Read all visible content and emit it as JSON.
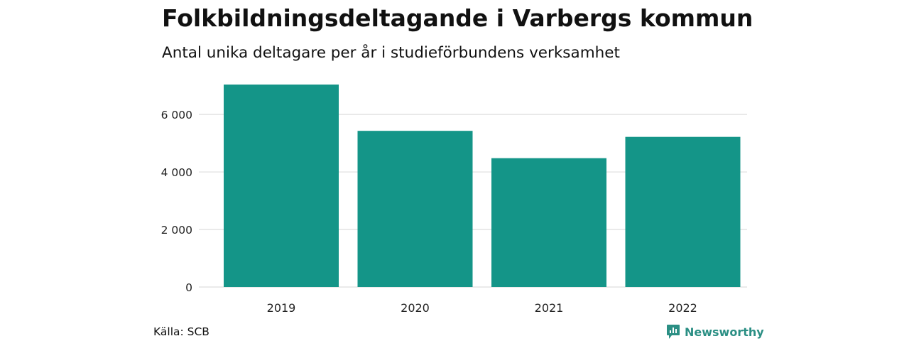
{
  "chart_data": {
    "type": "bar",
    "title": "Folkbildningsdeltagande i Varbergs kommun",
    "subtitle": "Antal unika deltagare per år i studieförbundens verksamhet",
    "categories": [
      "2019",
      "2020",
      "2021",
      "2022"
    ],
    "values": [
      7040,
      5430,
      4480,
      5220
    ],
    "ylim": [
      0,
      7040
    ],
    "yticks": [
      0,
      2000,
      4000,
      6000
    ],
    "ytick_labels": [
      "0",
      "2 000",
      "4 000",
      "6 000"
    ],
    "grid": "horizontal",
    "bar_color": "#149588",
    "grid_color": "#dddddd",
    "xlabel": "",
    "ylabel": ""
  },
  "footer": {
    "source": "Källa: SCB",
    "brand": "Newsworthy",
    "brand_color": "#2b8f84",
    "brand_icon": "newsworthy-logo-icon"
  }
}
